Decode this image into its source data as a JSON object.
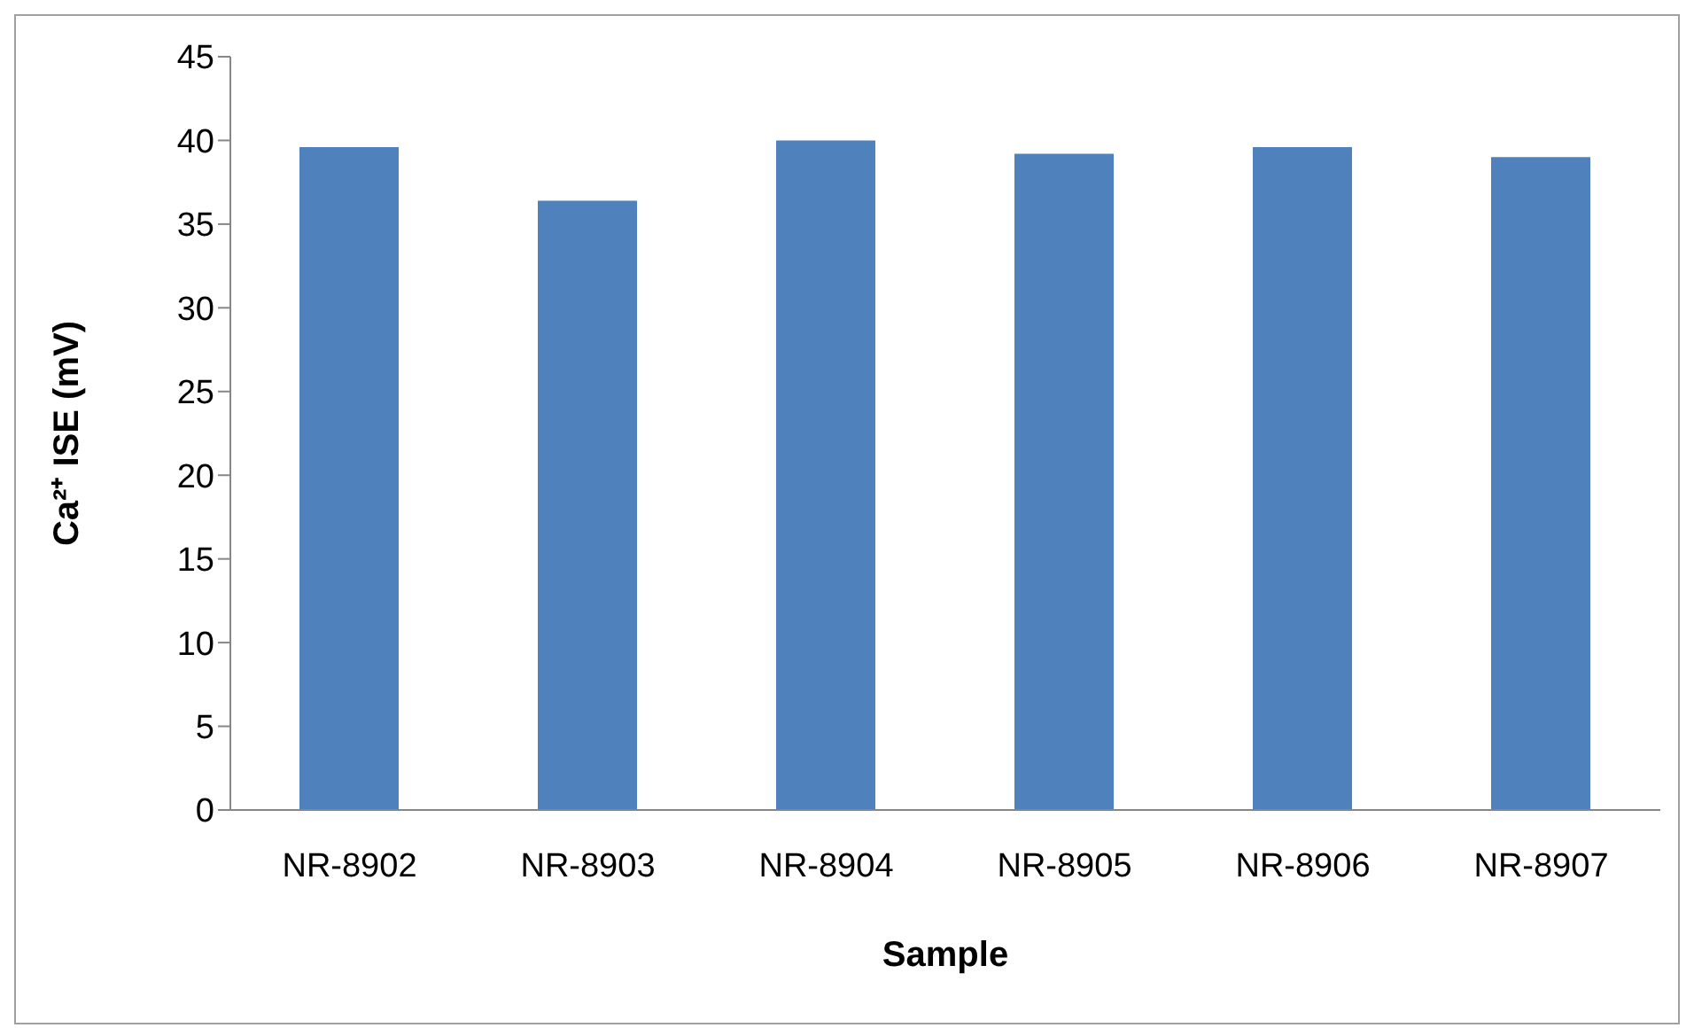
{
  "chart_data": {
    "type": "bar",
    "xlabel": "Sample",
    "ylabel": "Ca²⁺ ISE (mV)",
    "categories": [
      "NR-8902",
      "NR-8903",
      "NR-8904",
      "NR-8905",
      "NR-8906",
      "NR-8907"
    ],
    "values": [
      39.6,
      36.4,
      40.0,
      39.2,
      39.6,
      39.0
    ],
    "color": "#4f81bd",
    "ylim": [
      0,
      45
    ],
    "yticks": [
      0,
      5,
      10,
      15,
      20,
      25,
      30,
      35,
      40,
      45
    ],
    "grid": false,
    "legend": false
  }
}
